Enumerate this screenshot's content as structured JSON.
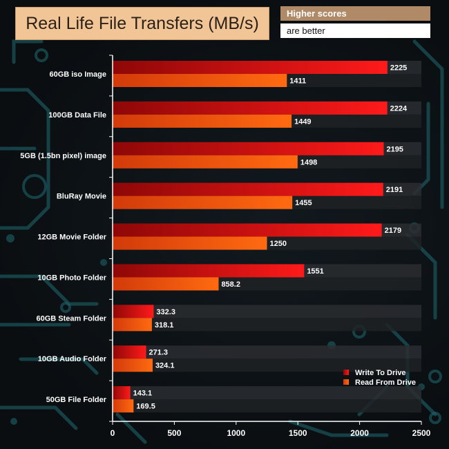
{
  "header": {
    "title": "Real Life File Transfers (MB/s)",
    "note_line1": "Higher scores",
    "note_line2": "are better"
  },
  "chart_data": {
    "type": "bar",
    "orientation": "horizontal",
    "title": "Real Life File Transfers (MB/s)",
    "categories": [
      "60GB iso Image",
      "100GB Data File",
      "5GB (1.5bn pixel) image",
      "BluRay Movie",
      "12GB Movie Folder",
      "10GB Photo Folder",
      "60GB Steam Folder",
      "10GB Audio Folder",
      "50GB File Folder"
    ],
    "series": [
      {
        "name": "Write To  Drive",
        "color": "#e01010",
        "values": [
          2225,
          2224,
          2195,
          2191,
          2179,
          1551,
          332.3,
          271.3,
          143.1
        ],
        "labels": [
          "2225",
          "2224",
          "2195",
          "2191",
          "2179",
          "1551",
          "332.3",
          "271.3",
          "143.1"
        ]
      },
      {
        "name": "Read From  Drive",
        "color": "#ff5a0a",
        "values": [
          1411,
          1449,
          1498,
          1455,
          1250,
          858.2,
          318.1,
          324.1,
          169.5
        ],
        "labels": [
          "1411",
          "1449",
          "1498",
          "1455",
          "1250",
          "858.2",
          "318.1",
          "324.1",
          "169.5"
        ]
      }
    ],
    "xlim": [
      0,
      2500
    ],
    "xticks": [
      0,
      500,
      1000,
      1500,
      2000,
      2500
    ],
    "xtick_labels": [
      "0",
      "500",
      "1000",
      "1500",
      "2000",
      "2500"
    ],
    "legend_position": "bottom-right",
    "grid": false
  }
}
